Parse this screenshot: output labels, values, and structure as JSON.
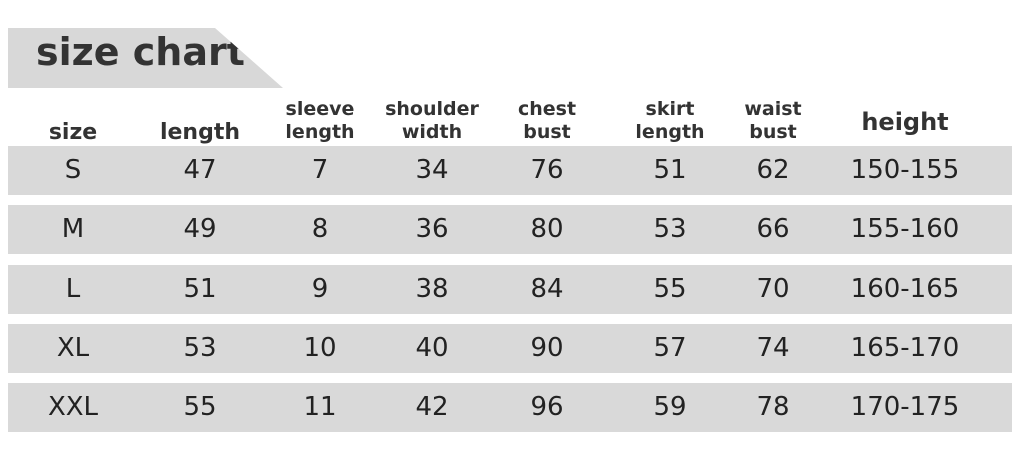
{
  "title": "size chart",
  "columns": [
    "size",
    "length",
    "sleeve\nlength",
    "shoulder\nwidth",
    "chest\nbust",
    "skirt\nlength",
    "waist\nbust",
    "height"
  ],
  "rows": [
    [
      "S",
      "47",
      "7",
      "34",
      "76",
      "51",
      "62",
      "150-155"
    ],
    [
      "M",
      "49",
      "8",
      "36",
      "80",
      "53",
      "66",
      "155-160"
    ],
    [
      "L",
      "51",
      "9",
      "38",
      "84",
      "55",
      "70",
      "160-165"
    ],
    [
      "XL",
      "53",
      "10",
      "40",
      "90",
      "57",
      "74",
      "165-170"
    ],
    [
      "XXL",
      "55",
      "11",
      "42",
      "96",
      "59",
      "78",
      "170-175"
    ]
  ]
}
